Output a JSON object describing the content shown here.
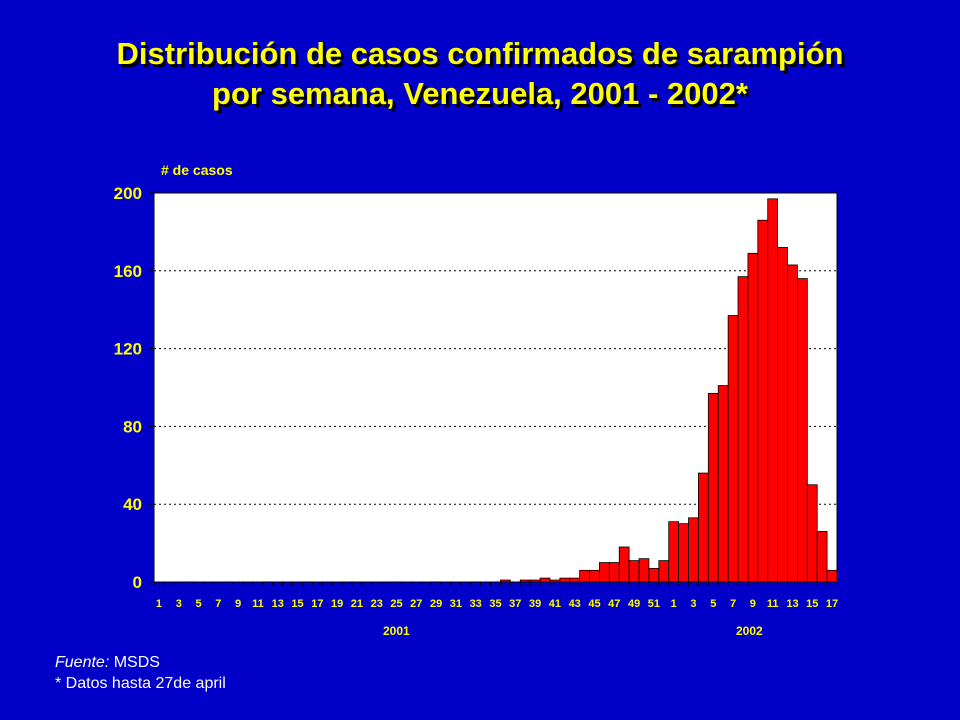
{
  "title_line1": "Distribución de casos confirmados de sarampión",
  "title_line2": "por semana, Venezuela,  2001 - 2002*",
  "footer": {
    "source_label": "Fuente:",
    "source_value": " MSDS",
    "note": "* Datos hasta  27de april"
  },
  "colors": {
    "background": "#0000c8",
    "bar": "#ff0000",
    "text": "#ffff00"
  },
  "chart_data": {
    "type": "bar",
    "ylabel": "# de casos",
    "ylim": [
      0,
      200
    ],
    "yticks": [
      0,
      40,
      80,
      120,
      160,
      200
    ],
    "grid": "horizontal dotted",
    "year_labels": [
      "2001",
      "2002"
    ],
    "categories": [
      "1",
      "2",
      "3",
      "4",
      "5",
      "6",
      "7",
      "8",
      "9",
      "10",
      "11",
      "12",
      "13",
      "14",
      "15",
      "16",
      "17",
      "18",
      "19",
      "20",
      "21",
      "22",
      "23",
      "24",
      "25",
      "26",
      "27",
      "28",
      "29",
      "30",
      "31",
      "32",
      "33",
      "34",
      "35",
      "36",
      "37",
      "38",
      "39",
      "40",
      "41",
      "42",
      "43",
      "44",
      "45",
      "46",
      "47",
      "48",
      "49",
      "50",
      "51",
      "52",
      "1",
      "2",
      "3",
      "4",
      "5",
      "6",
      "7",
      "8",
      "9",
      "10",
      "11",
      "12",
      "13",
      "14",
      "15",
      "16",
      "17"
    ],
    "values": [
      0,
      0,
      0,
      0,
      0,
      0,
      0,
      0,
      0,
      0,
      0,
      0,
      0,
      0,
      0,
      0,
      0,
      0,
      0,
      0,
      0,
      0,
      0,
      0,
      0,
      0,
      0,
      0,
      0,
      0,
      0,
      0,
      0,
      0,
      0,
      1,
      0,
      1,
      1,
      2,
      1,
      2,
      2,
      6,
      6,
      10,
      10,
      18,
      11,
      12,
      7,
      11,
      31,
      30,
      33,
      56,
      97,
      101,
      137,
      157,
      169,
      186,
      197,
      172,
      163,
      156,
      50,
      26,
      6
    ]
  }
}
